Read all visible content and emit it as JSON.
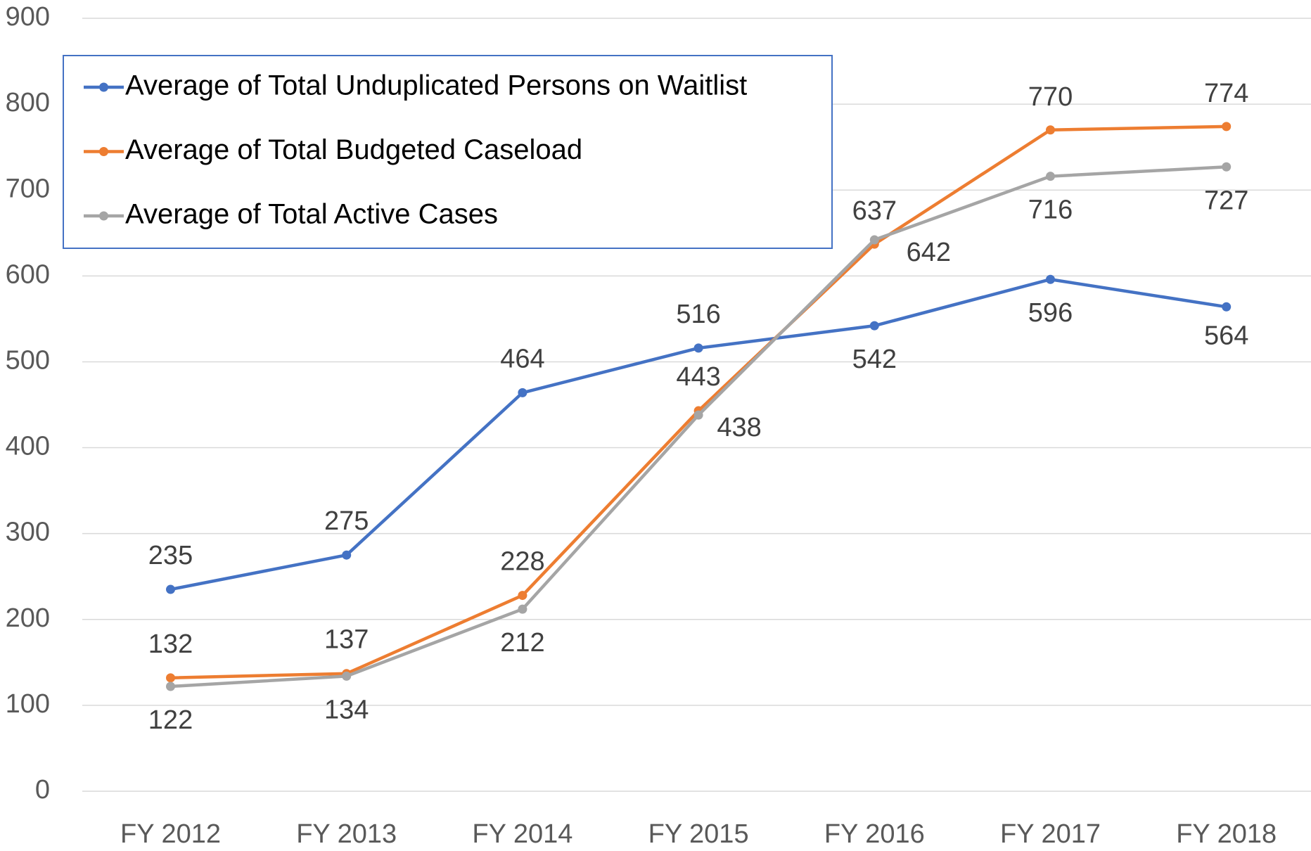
{
  "chart_data": {
    "type": "line",
    "categories": [
      "FY 2012",
      "FY 2013",
      "FY 2014",
      "FY 2015",
      "FY 2016",
      "FY 2017",
      "FY 2018"
    ],
    "series": [
      {
        "name": "Average of Total Unduplicated Persons on Waitlist",
        "color": "#4472c4",
        "values": [
          235,
          275,
          464,
          516,
          542,
          596,
          564
        ]
      },
      {
        "name": "Average of Total Budgeted Caseload",
        "color": "#ed7d31",
        "values": [
          132,
          137,
          228,
          443,
          637,
          770,
          774
        ]
      },
      {
        "name": "Average of Total Active Cases",
        "color": "#a5a5a5",
        "values": [
          122,
          134,
          212,
          438,
          642,
          716,
          727
        ]
      }
    ],
    "ylim": [
      0,
      900
    ],
    "yticks": [
      0,
      100,
      200,
      300,
      400,
      500,
      600,
      700,
      800,
      900
    ],
    "grid": true,
    "legend": "top-left"
  }
}
